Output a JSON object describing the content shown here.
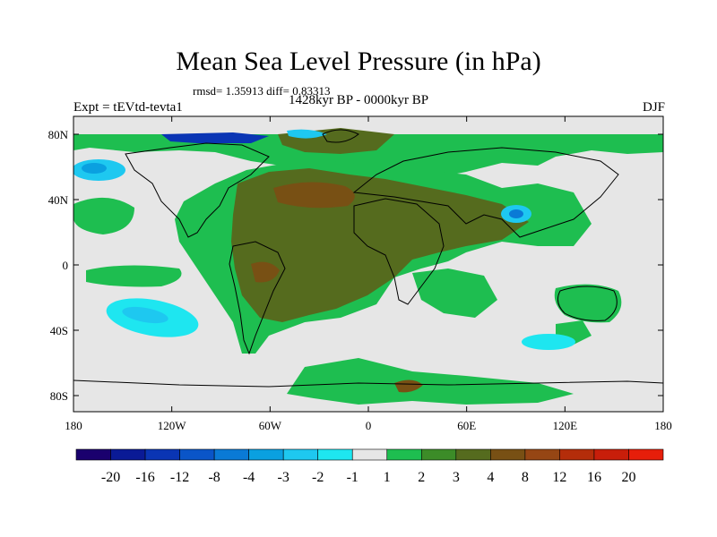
{
  "title": "Mean Sea Level Pressure (in hPa)",
  "stats": "rmsd= 1.35913 diff= 0.83313",
  "experiment": "Expt = tEVtd-tevta1",
  "period": "1428kyr BP - 0000kyr BP",
  "season": "DJF",
  "lon_ticks": [
    "180",
    "120W",
    "60W",
    "0",
    "60E",
    "120E",
    "180"
  ],
  "lat_ticks": [
    "80N",
    "40N",
    "0",
    "40S",
    "80S"
  ],
  "colorbar": {
    "colors": [
      "#1a006e",
      "#0a1a96",
      "#0a35b4",
      "#0a55c8",
      "#0a7ad6",
      "#0aa0e0",
      "#1ec8f0",
      "#1ee6f0",
      "#e6e6e6",
      "#1ebe50",
      "#3c8c28",
      "#556b1e",
      "#785014",
      "#964614",
      "#b42d0a",
      "#c81e0a",
      "#e61e0a"
    ],
    "labels": [
      "-20",
      "-16",
      "-12",
      "-8",
      "-4",
      "-3",
      "-2",
      "-1",
      "1",
      "2",
      "3",
      "4",
      "8",
      "12",
      "16",
      "20"
    ]
  },
  "palette": {
    "neutral": "#e6e6e6",
    "light_green": "#1ebe50",
    "dark_green": "#556b1e",
    "brown": "#785014",
    "cyan": "#1ee6f0",
    "light_blue": "#1ec8f0",
    "blue": "#0a7ad6",
    "navy": "#0a35b4"
  }
}
